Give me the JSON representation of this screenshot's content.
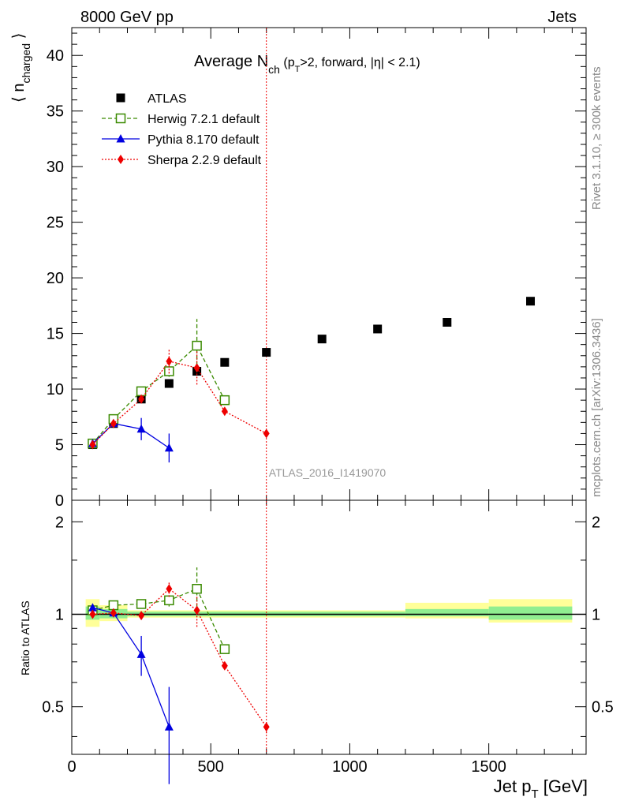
{
  "header": {
    "left": "8000 GeV pp",
    "right": "Jets"
  },
  "side_labels": {
    "rivet": "Rivet 3.1.10, ≥ 300k events",
    "mcplots": "mcplots.cern.ch [arXiv:1306.3436]"
  },
  "watermark": "ATLAS_2016_I1419070",
  "colors": {
    "atlas": "#000000",
    "herwig": "#3a8a00",
    "pythia": "#0000e0",
    "sherpa": "#ee0000",
    "band_inner": "#90ee90",
    "band_outer": "#ffff99"
  },
  "chart_data": [
    {
      "type": "scatter",
      "panel": "main",
      "title": "Average N",
      "title_sub": "ch",
      "title_rest": " (p",
      "title_sub2": "T",
      "title_rest2": ">2, forward, |η| < 2.1)",
      "ylabel": "⟨ n",
      "ylabel_sub": "charged",
      "ylabel_end": " ⟩",
      "xlim": [
        0,
        1850
      ],
      "ylim": [
        0,
        42.5
      ],
      "yticks": [
        0,
        5,
        10,
        15,
        20,
        25,
        30,
        35,
        40
      ],
      "ytick_labels": [
        "0",
        "5",
        "10",
        "15",
        "20",
        "25",
        "30",
        "35",
        "40"
      ],
      "legend_position": "top-left",
      "series": [
        {
          "name": "ATLAS",
          "key": "atlas",
          "marker": "square-filled",
          "line": "none",
          "x": [
            75,
            150,
            250,
            350,
            450,
            550,
            700,
            900,
            1100,
            1350,
            1650
          ],
          "y": [
            5.0,
            6.9,
            9.1,
            10.5,
            11.6,
            12.4,
            13.3,
            14.5,
            15.4,
            16.0,
            17.9
          ],
          "err": [
            0.2,
            0.2,
            0.2,
            0.2,
            0.2,
            0.2,
            0.2,
            0.2,
            0.2,
            0.2,
            0.2
          ]
        },
        {
          "name": "Herwig 7.2.1 default",
          "key": "herwig",
          "marker": "square-open",
          "line": "dashed",
          "x": [
            75,
            150,
            250,
            350,
            450,
            550
          ],
          "y": [
            5.1,
            7.3,
            9.8,
            11.6,
            13.9,
            9.0
          ],
          "err": [
            0.2,
            0.2,
            0.2,
            0.5,
            2.4,
            0.2
          ]
        },
        {
          "name": "Pythia 8.170 default",
          "key": "pythia",
          "marker": "triangle",
          "line": "solid",
          "x": [
            75,
            150,
            250,
            350
          ],
          "y": [
            5.1,
            6.9,
            6.4,
            4.7
          ],
          "err": [
            0.2,
            0.2,
            1.0,
            1.3
          ]
        },
        {
          "name": "Sherpa 2.2.9 default",
          "key": "sherpa",
          "marker": "diamond",
          "line": "dotted",
          "x": [
            75,
            150,
            250,
            350,
            450,
            550,
            700
          ],
          "y": [
            5.0,
            6.9,
            9.1,
            12.5,
            11.9,
            8.0,
            6.0
          ],
          "err": [
            0.2,
            0.2,
            0.2,
            1.1,
            1.5,
            0.2,
            0.2
          ]
        }
      ]
    },
    {
      "type": "scatter",
      "panel": "ratio",
      "xlabel": "Jet p",
      "xlabel_sub": "T",
      "xlabel_unit": " [GeV]",
      "ylabel": "Ratio to ATLAS",
      "xlim": [
        0,
        1850
      ],
      "ylim": [
        0.35,
        2.35
      ],
      "yticks": [
        0.5,
        1,
        2
      ],
      "ytick_labels": [
        "0.5",
        "1",
        "2"
      ],
      "xticks": [
        0,
        500,
        1000,
        1500
      ],
      "xtick_labels": [
        "0",
        "500",
        "1000",
        "1500"
      ],
      "bands": [
        {
          "x0": 50,
          "x1": 100,
          "inner": [
            0.96,
            1.06
          ],
          "outer": [
            0.91,
            1.12
          ]
        },
        {
          "x0": 100,
          "x1": 200,
          "inner": [
            0.97,
            1.04
          ],
          "outer": [
            0.95,
            1.07
          ]
        },
        {
          "x0": 200,
          "x1": 1200,
          "inner": [
            0.985,
            1.02
          ],
          "outer": [
            0.975,
            1.03
          ]
        },
        {
          "x0": 1200,
          "x1": 1500,
          "inner": [
            0.985,
            1.04
          ],
          "outer": [
            0.97,
            1.09
          ]
        },
        {
          "x0": 1500,
          "x1": 1800,
          "inner": [
            0.96,
            1.06
          ],
          "outer": [
            0.94,
            1.12
          ]
        }
      ],
      "series": [
        {
          "name": "Herwig 7.2.1 default",
          "key": "herwig",
          "marker": "square-open",
          "line": "dashed",
          "x": [
            75,
            150,
            250,
            350,
            450,
            550
          ],
          "y": [
            1.03,
            1.07,
            1.08,
            1.11,
            1.21,
            0.77
          ],
          "err": [
            0.03,
            0.03,
            0.03,
            0.05,
            0.21,
            0.02
          ]
        },
        {
          "name": "Pythia 8.170 default",
          "key": "pythia",
          "marker": "triangle",
          "line": "solid",
          "x": [
            75,
            150,
            250,
            350
          ],
          "y": [
            1.05,
            1.01,
            0.74,
            0.43
          ],
          "err": [
            0.03,
            0.03,
            0.11,
            0.15
          ]
        },
        {
          "name": "Sherpa 2.2.9 default",
          "key": "sherpa",
          "marker": "diamond",
          "line": "dotted",
          "x": [
            75,
            150,
            250,
            350,
            450,
            550,
            700
          ],
          "y": [
            1.0,
            1.01,
            0.99,
            1.21,
            1.03,
            0.68,
            0.43
          ],
          "err": [
            0.02,
            0.02,
            0.02,
            0.07,
            0.12,
            0.02,
            0.02
          ]
        }
      ]
    }
  ]
}
